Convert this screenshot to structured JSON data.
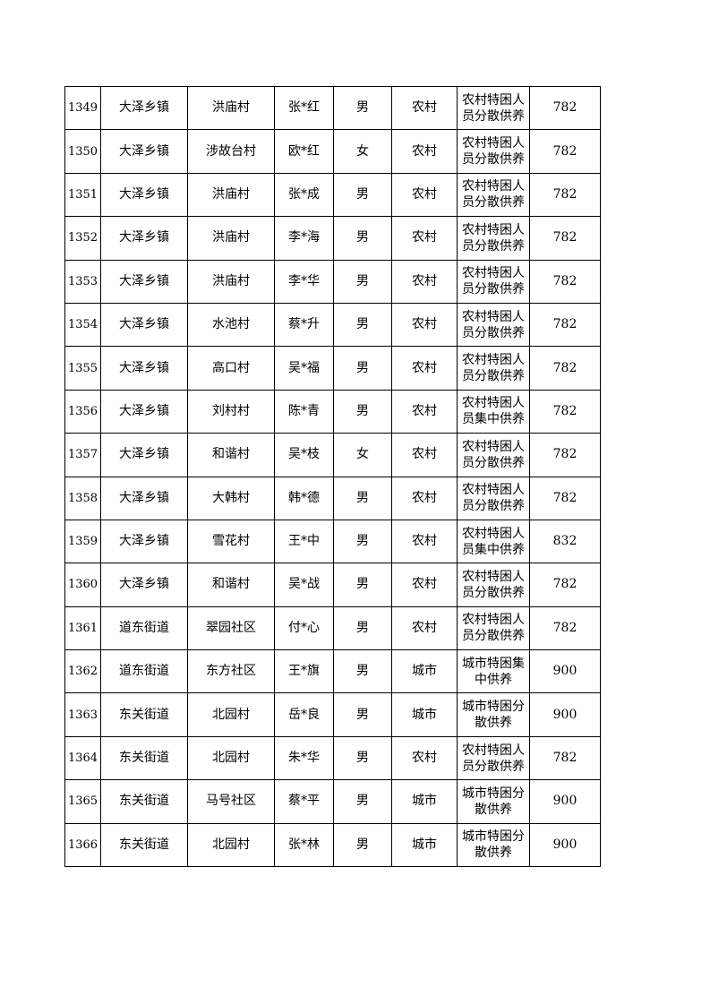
{
  "rows": [
    [
      "1349",
      "大泽乡镇",
      "洪庙村",
      "张*红",
      "男",
      "农村",
      "农村特困人员分散供养",
      "782"
    ],
    [
      "1350",
      "大泽乡镇",
      "涉故台村",
      "欧*红",
      "女",
      "农村",
      "农村特困人员分散供养",
      "782"
    ],
    [
      "1351",
      "大泽乡镇",
      "洪庙村",
      "张*成",
      "男",
      "农村",
      "农村特困人员分散供养",
      "782"
    ],
    [
      "1352",
      "大泽乡镇",
      "洪庙村",
      "李*海",
      "男",
      "农村",
      "农村特困人员分散供养",
      "782"
    ],
    [
      "1353",
      "大泽乡镇",
      "洪庙村",
      "李*华",
      "男",
      "农村",
      "农村特困人员分散供养",
      "782"
    ],
    [
      "1354",
      "大泽乡镇",
      "水池村",
      "蔡*升",
      "男",
      "农村",
      "农村特困人员分散供养",
      "782"
    ],
    [
      "1355",
      "大泽乡镇",
      "高口村",
      "吴*福",
      "男",
      "农村",
      "农村特困人员分散供养",
      "782"
    ],
    [
      "1356",
      "大泽乡镇",
      "刘村村",
      "陈*青",
      "男",
      "农村",
      "农村特困人员集中供养",
      "782"
    ],
    [
      "1357",
      "大泽乡镇",
      "和谐村",
      "吴*枝",
      "女",
      "农村",
      "农村特困人员分散供养",
      "782"
    ],
    [
      "1358",
      "大泽乡镇",
      "大韩村",
      "韩*德",
      "男",
      "农村",
      "农村特困人员分散供养",
      "782"
    ],
    [
      "1359",
      "大泽乡镇",
      "雪花村",
      "王*中",
      "男",
      "农村",
      "农村特困人员集中供养",
      "832"
    ],
    [
      "1360",
      "大泽乡镇",
      "和谐村",
      "吴*战",
      "男",
      "农村",
      "农村特困人员分散供养",
      "782"
    ],
    [
      "1361",
      "道东街道",
      "翠园社区",
      "付*心",
      "男",
      "农村",
      "农村特困人员分散供养",
      "782"
    ],
    [
      "1362",
      "道东街道",
      "东方社区",
      "王*旗",
      "男",
      "城市",
      "城市特困集中供养",
      "900"
    ],
    [
      "1363",
      "东关街道",
      "北园村",
      "岳*良",
      "男",
      "城市",
      "城市特困分散供养",
      "900"
    ],
    [
      "1364",
      "东关街道",
      "北园村",
      "朱*华",
      "男",
      "农村",
      "农村特困人员分散供养",
      "782"
    ],
    [
      "1365",
      "东关街道",
      "马号社区",
      "蔡*平",
      "男",
      "城市",
      "城市特困分散供养",
      "900"
    ],
    [
      "1366",
      "东关街道",
      "北园村",
      "张*林",
      "男",
      "城市",
      "城市特困分散供养",
      "900"
    ]
  ]
}
